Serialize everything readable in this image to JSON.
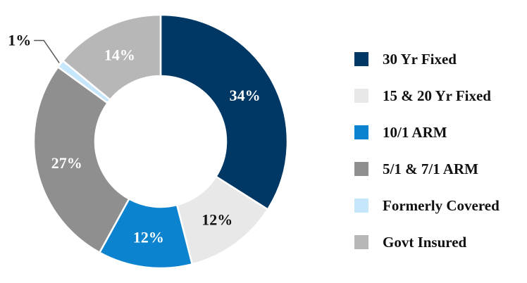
{
  "chart_data": {
    "type": "pie",
    "variant": "donut",
    "title": "",
    "legend_position": "right",
    "slices": [
      {
        "label": "30 Yr Fixed",
        "value": 34,
        "display": "34%",
        "color": "#003865",
        "text_color": "#ffffff"
      },
      {
        "label": "15 & 20 Yr Fixed",
        "value": 12,
        "display": "12%",
        "color": "#e8e8e8",
        "text_color": "#111111"
      },
      {
        "label": "10/1 ARM",
        "value": 12,
        "display": "12%",
        "color": "#0b83cf",
        "text_color": "#ffffff"
      },
      {
        "label": "5/1 & 7/1 ARM",
        "value": 27,
        "display": "27%",
        "color": "#8f8f8f",
        "text_color": "#ffffff"
      },
      {
        "label": "Formerly Covered",
        "value": 1,
        "display": "1%",
        "color": "#c6e6fb",
        "text_color": "#111111"
      },
      {
        "label": "Govt Insured",
        "value": 14,
        "display": "14%",
        "color": "#b7b7b7",
        "text_color": "#ffffff"
      }
    ]
  }
}
